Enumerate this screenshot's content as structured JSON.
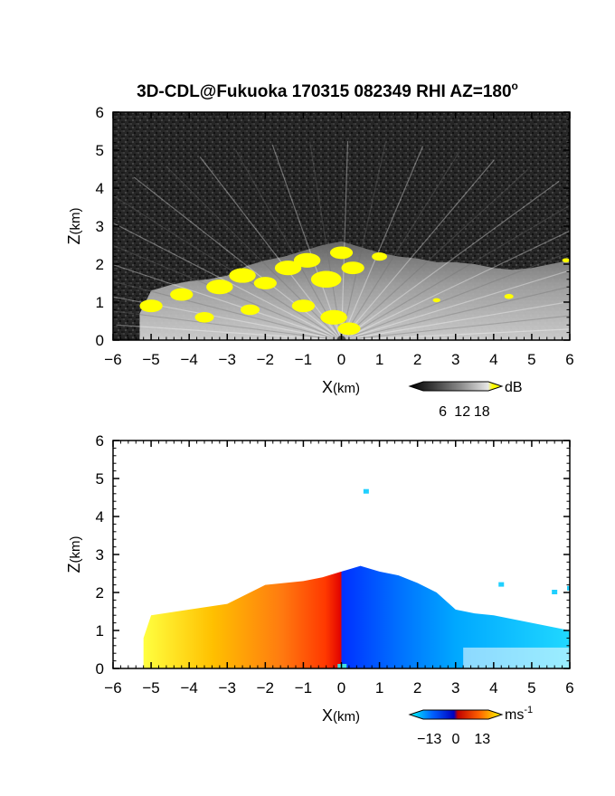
{
  "chart_data": [
    {
      "type": "heatmap",
      "title": "3D-CDL@Fukuoka 170315 082349 RHI AZ=180",
      "title_superscript": "o",
      "quantity": "signal intensity",
      "xlabel": "X",
      "xlabel_unit": "(km)",
      "ylabel": "Z",
      "ylabel_unit": "(km)",
      "xlim": [
        -6,
        6
      ],
      "ylim": [
        0,
        6
      ],
      "xticks": [
        "-6",
        "-5",
        "-4",
        "-3",
        "-2",
        "-1",
        "0",
        "1",
        "2",
        "3",
        "4",
        "5",
        "6"
      ],
      "yticks": [
        "0",
        "1",
        "2",
        "3",
        "4",
        "5",
        "6"
      ],
      "grid": false,
      "colorbar": {
        "unit": "dB",
        "ticks": [
          "6",
          "12",
          "18"
        ],
        "range": [
          0,
          20
        ],
        "colors": [
          "#000000",
          "#3a3a3a",
          "#7a7a7a",
          "#b5b5b5",
          "#ededed",
          "#ffff00"
        ],
        "placement": "bottom-right"
      },
      "background_color": "#262626",
      "saturated_color": "#ffff00",
      "echo_region": {
        "top_km": [
          [
            -5.3,
            0.7
          ],
          [
            -5.0,
            1.3
          ],
          [
            -4.5,
            1.45
          ],
          [
            -4.0,
            1.55
          ],
          [
            -3.5,
            1.6
          ],
          [
            -3.0,
            1.7
          ],
          [
            -2.5,
            1.95
          ],
          [
            -2.0,
            2.1
          ],
          [
            -1.5,
            2.2
          ],
          [
            -1.0,
            2.35
          ],
          [
            -0.5,
            2.5
          ],
          [
            0.0,
            2.6
          ],
          [
            0.5,
            2.45
          ],
          [
            1.0,
            2.3
          ],
          [
            1.5,
            2.2
          ],
          [
            2.0,
            2.15
          ],
          [
            2.5,
            2.05
          ],
          [
            3.0,
            2.05
          ],
          [
            3.5,
            2.0
          ],
          [
            4.0,
            1.9
          ],
          [
            4.5,
            1.85
          ],
          [
            5.0,
            1.9
          ],
          [
            5.5,
            2.0
          ],
          [
            6.0,
            2.1
          ]
        ],
        "saturated_patches_km": [
          [
            -5.0,
            0.9,
            0.3
          ],
          [
            -4.2,
            1.2,
            0.3
          ],
          [
            -3.2,
            1.4,
            0.35
          ],
          [
            -2.6,
            1.7,
            0.35
          ],
          [
            -2.0,
            1.5,
            0.3
          ],
          [
            -1.4,
            1.9,
            0.35
          ],
          [
            -0.9,
            2.1,
            0.35
          ],
          [
            -0.4,
            1.6,
            0.4
          ],
          [
            0.0,
            2.3,
            0.3
          ],
          [
            0.3,
            1.9,
            0.3
          ],
          [
            -0.2,
            0.6,
            0.35
          ],
          [
            0.2,
            0.3,
            0.3
          ],
          [
            -1.0,
            0.9,
            0.3
          ],
          [
            -2.4,
            0.8,
            0.25
          ],
          [
            -3.6,
            0.6,
            0.25
          ],
          [
            1.0,
            2.2,
            0.2
          ],
          [
            4.4,
            1.15,
            0.12
          ],
          [
            2.5,
            1.05,
            0.1
          ],
          [
            5.9,
            2.1,
            0.1
          ]
        ]
      }
    },
    {
      "type": "heatmap",
      "quantity": "radial velocity",
      "xlabel": "X",
      "xlabel_unit": "(km)",
      "ylabel": "Z",
      "ylabel_unit": "(km)",
      "xlim": [
        -6,
        6
      ],
      "ylim": [
        0,
        6
      ],
      "xticks": [
        "-6",
        "-5",
        "-4",
        "-3",
        "-2",
        "-1",
        "0",
        "1",
        "2",
        "3",
        "4",
        "5",
        "6"
      ],
      "yticks": [
        "0",
        "1",
        "2",
        "3",
        "4",
        "5",
        "6"
      ],
      "grid": false,
      "colorbar": {
        "unit": "ms",
        "unit_superscript": "-1",
        "ticks": [
          "-13",
          "0",
          "13"
        ],
        "range": [
          -16,
          16
        ],
        "colors": [
          "#00ffff",
          "#0060ff",
          "#0000c8",
          "#c80000",
          "#ff6000",
          "#ffff00"
        ],
        "placement": "bottom-right"
      },
      "background_color": "#ffffff",
      "velocity_regions_km": [
        {
          "x_from": -5.2,
          "x_to": 0.0,
          "velocity_ms": "positive (away, up to ~13)",
          "top": [
            [
              -5.2,
              0.8
            ],
            [
              -5.0,
              1.4
            ],
            [
              -4.0,
              1.55
            ],
            [
              -3.0,
              1.7
            ],
            [
              -2.0,
              2.2
            ],
            [
              -1.0,
              2.3
            ],
            [
              -0.5,
              2.4
            ],
            [
              0.0,
              2.55
            ]
          ]
        },
        {
          "x_from": 0.0,
          "x_to": 6.0,
          "velocity_ms": "negative (toward, down to ~-13)",
          "top": [
            [
              0.0,
              2.55
            ],
            [
              0.5,
              2.7
            ],
            [
              1.0,
              2.55
            ],
            [
              1.5,
              2.45
            ],
            [
              2.0,
              2.25
            ],
            [
              2.5,
              2.0
            ],
            [
              3.0,
              1.55
            ],
            [
              3.5,
              1.45
            ],
            [
              4.0,
              1.4
            ],
            [
              5.0,
              1.2
            ],
            [
              6.0,
              1.0
            ]
          ]
        }
      ],
      "isolated_points_km": [
        [
          0.65,
          4.65
        ],
        [
          6.0,
          2.1
        ],
        [
          5.6,
          2.0
        ],
        [
          4.2,
          2.2
        ]
      ]
    }
  ]
}
